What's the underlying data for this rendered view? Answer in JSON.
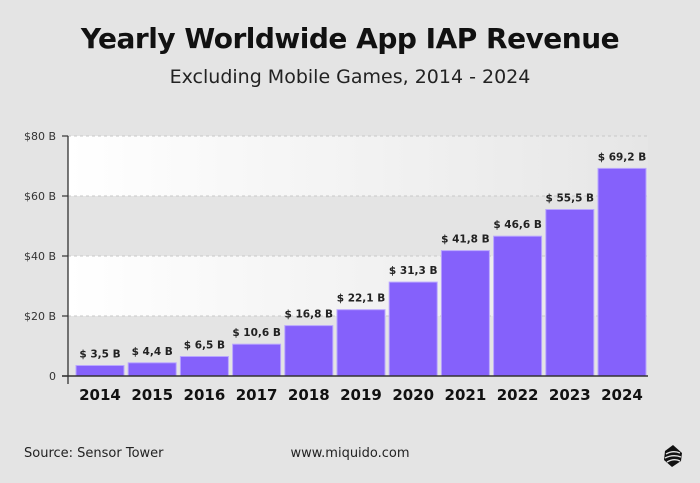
{
  "chart_data": {
    "type": "bar",
    "title": "Yearly Worldwide App IAP Revenue",
    "subtitle": "Excluding Mobile Games, 2014 - 2024",
    "categories": [
      "2014",
      "2015",
      "2016",
      "2017",
      "2018",
      "2019",
      "2020",
      "2021",
      "2022",
      "2023",
      "2024"
    ],
    "values": [
      3.5,
      4.4,
      6.5,
      10.6,
      16.8,
      22.1,
      31.3,
      41.8,
      46.6,
      55.5,
      69.2
    ],
    "data_labels": [
      "$ 3,5 B",
      "$ 4,4 B",
      "$ 6,5 B",
      "$ 10,6 B",
      "$ 16,8 B",
      "$ 22,1 B",
      "$ 31,3 B",
      "$ 41,8 B",
      "$ 46,6 B",
      "$ 55,5 B",
      "$ 69,2 B"
    ],
    "yticks": [
      0,
      20,
      40,
      60,
      80
    ],
    "ytick_labels": [
      "0",
      "$20 B",
      "$40 B",
      "$60 B",
      "$80 B"
    ],
    "ylim": [
      0,
      80
    ],
    "xlabel": "",
    "ylabel": "",
    "grid": true,
    "colors": {
      "bar": "#8561fb",
      "bar_edge": "#b9a6ff"
    }
  },
  "footer": {
    "source": "Source: Sensor Tower",
    "website": "www.miquido.com"
  },
  "logo": {
    "icon": "miquido-logo"
  }
}
